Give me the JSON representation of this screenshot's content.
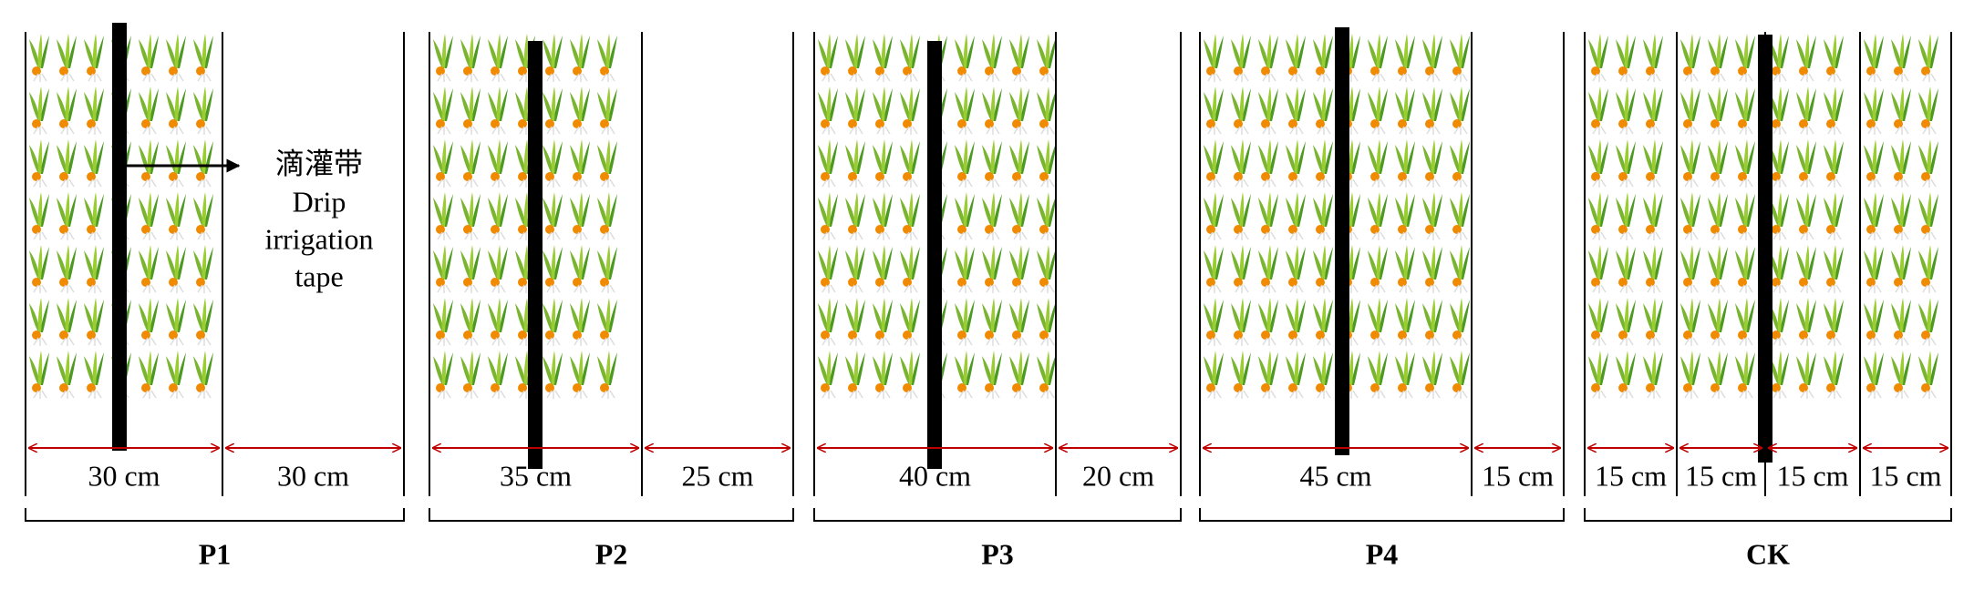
{
  "annotation": {
    "label_zh": "滴灌带",
    "label_en": [
      "Drip",
      "irrigation",
      "tape"
    ]
  },
  "panels": [
    {
      "label": "P1",
      "segments": [
        "30 cm",
        "30 cm"
      ]
    },
    {
      "label": "P2",
      "segments": [
        "35 cm",
        "25 cm"
      ]
    },
    {
      "label": "P3",
      "segments": [
        "40 cm",
        "20 cm"
      ]
    },
    {
      "label": "P4",
      "segments": [
        "45 cm",
        "15 cm"
      ]
    },
    {
      "label": "CK",
      "segments": [
        "15 cm",
        "15 cm",
        "15 cm",
        "15 cm"
      ]
    }
  ]
}
